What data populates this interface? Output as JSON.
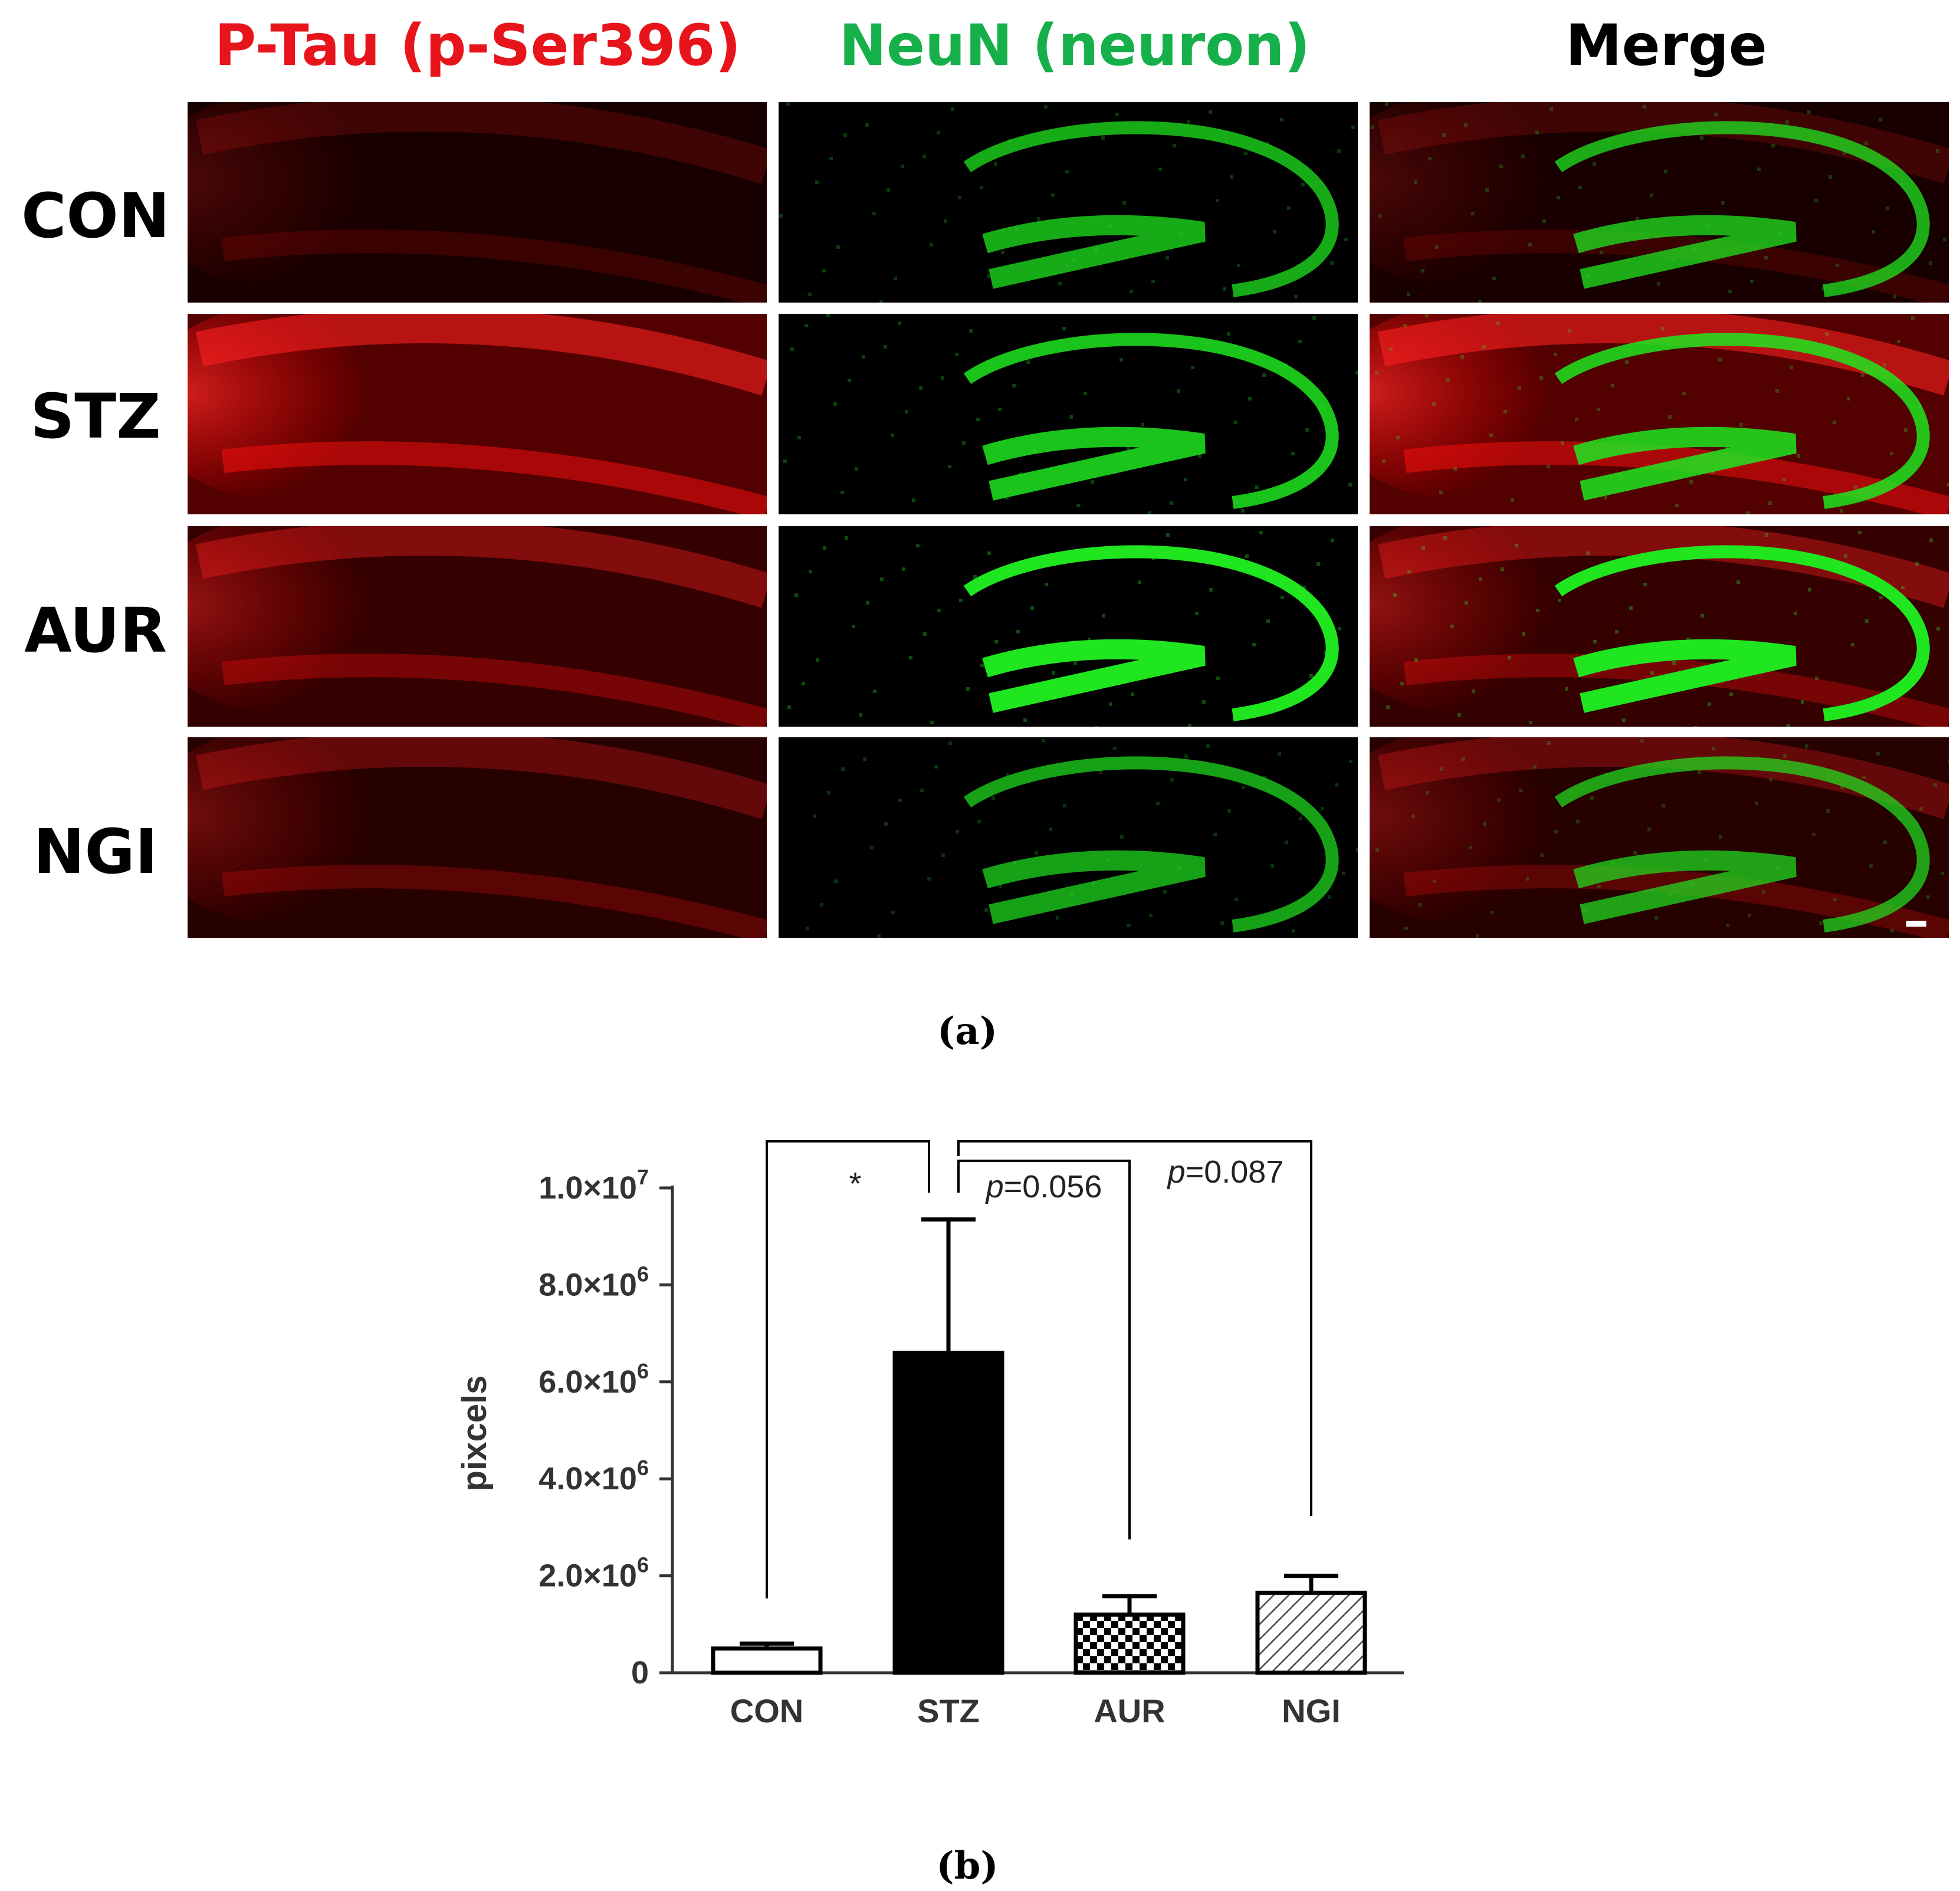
{
  "panel_a": {
    "columns": [
      {
        "title": "P-Tau (p-Ser396)",
        "color": "#e8141c"
      },
      {
        "title": "NeuN (neuron)",
        "color": "#16b04b"
      },
      {
        "title": "Merge",
        "color": "#000000"
      }
    ],
    "rows": [
      "CON",
      "STZ",
      "AUR",
      "NGI"
    ],
    "caption": "(a)"
  },
  "panel_b": {
    "caption": "(b)"
  },
  "chart_data": {
    "type": "bar",
    "categories": [
      "CON",
      "STZ",
      "AUR",
      "NGI"
    ],
    "values": [
      500000,
      6600000,
      1200000,
      1650000
    ],
    "errors": [
      100000,
      2750000,
      380000,
      350000
    ],
    "patterns": [
      "white",
      "black",
      "checker",
      "hatch"
    ],
    "ylabel": "pixcels",
    "ylim": [
      0,
      10000000
    ],
    "yticks": [
      {
        "value": 0,
        "base": "0",
        "exp": ""
      },
      {
        "value": 2000000,
        "base": "2.0×10",
        "exp": "6"
      },
      {
        "value": 4000000,
        "base": "4.0×10",
        "exp": "6"
      },
      {
        "value": 6000000,
        "base": "6.0×10",
        "exp": "6"
      },
      {
        "value": 8000000,
        "base": "8.0×10",
        "exp": "6"
      },
      {
        "value": 10000000,
        "base": "1.0×10",
        "exp": "7"
      }
    ],
    "annotations": [
      {
        "text": "*",
        "italic_prefix": "",
        "from": "CON",
        "to": "STZ"
      },
      {
        "text": "=0.056",
        "italic_prefix": "p",
        "from": "STZ",
        "to": "AUR"
      },
      {
        "text": "=0.087",
        "italic_prefix": "p",
        "from": "STZ",
        "to": "NGI"
      }
    ]
  }
}
